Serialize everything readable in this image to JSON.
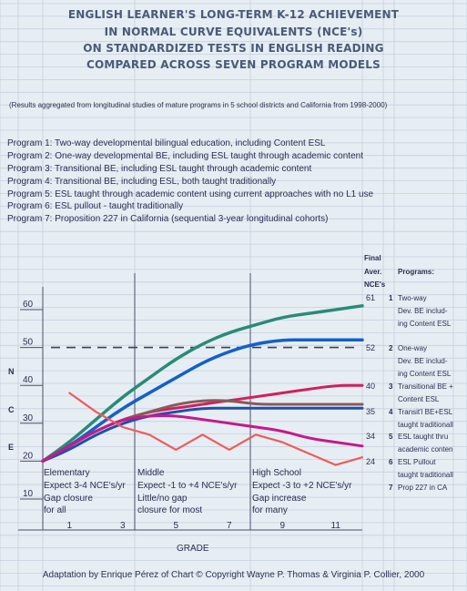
{
  "title_lines": [
    "ENGLISH LEARNER'S LONG-TERM K-12 ACHIEVEMENT",
    "IN NORMAL CURVE EQUIVALENTS (NCE's)",
    "ON STANDARDIZED TESTS IN ENGLISH READING",
    "COMPARED ACROSS SEVEN PROGRAM MODELS"
  ],
  "note": "(Results aggregated from longitudinal studies of mature programs in 5 school districts and California from 1998-2000)",
  "programs": [
    "Program 1: Two-way developmental bilingual education, including Content ESL",
    "Program 2: One-way developmental BE, including ESL taught through academic content",
    "Program 3: Transitional BE, including ESL taught through academic content",
    "Program 4: Transitional BE, including ESL, both taught traditionally",
    "Program 5: ESL taught through academic content using current approaches with no L1 use",
    "Program 6: ESL pullout - taught traditionally",
    "Program 7: Proposition 227 in California (sequential 3-year longitudinal cohorts)"
  ],
  "legend_header": {
    "final_label": "Final",
    "aver_label": "Aver.",
    "nce_label": "NCE's",
    "programs_label": "Programs:"
  },
  "legend_rows": [
    {
      "value": "61",
      "num": "1",
      "lines": [
        "Two-way",
        "Dev. BE includ-",
        "ing Content ESL"
      ]
    },
    {
      "value": "52",
      "num": "2",
      "lines": [
        "One-way",
        "Dev. BE includ-",
        "ing Content ESL"
      ]
    },
    {
      "value": "40",
      "num": "3",
      "lines": [
        "Transitional BE +",
        "Content ESL"
      ]
    },
    {
      "value": "35",
      "num": "4",
      "lines": [
        "Transit'l BE+ESL",
        "taught traditionall"
      ]
    },
    {
      "value": "34",
      "num": "5",
      "lines": [
        "ESL taught thru",
        "academic conten"
      ]
    },
    {
      "value": "24",
      "num": "6",
      "lines": [
        "ESL Pullout",
        "taught traditionall"
      ]
    },
    {
      "value": "",
      "num": "7",
      "lines": [
        "Prop 227 in CA"
      ]
    }
  ],
  "y_axis_letters": [
    "N",
    "C",
    "E"
  ],
  "stages": [
    {
      "lines": [
        "Elementary",
        "Expect 3-4 NCE's/yr",
        "Gap closure",
        "for all"
      ]
    },
    {
      "lines": [
        "Middle",
        "Expect -1 to +4 NCE's/yr",
        "Little/no gap",
        "closure for most"
      ]
    },
    {
      "lines": [
        "High School",
        "Expect -3 to +2 NCE's/yr",
        "Gap increase",
        "for many"
      ]
    }
  ],
  "credit": "Adaptation by Enrique Pérez of Chart © Copyright Wayne P. Thomas & Virginia P. Collier, 2000",
  "chart_data": {
    "type": "line",
    "xlabel": "GRADE",
    "ylabel": "",
    "x_ticks": [
      1,
      3,
      5,
      7,
      9,
      11
    ],
    "y_ticks": [
      10,
      20,
      30,
      40,
      50,
      60
    ],
    "xlim": [
      0,
      12
    ],
    "ylim": [
      10,
      66
    ],
    "reference_line": {
      "y": 50,
      "style": "dashed"
    },
    "series": [
      {
        "name": "1",
        "color": "#2a8a78",
        "x": [
          0,
          1,
          2,
          3,
          4,
          5,
          6,
          7,
          8,
          9,
          10,
          11,
          12
        ],
        "y": [
          20,
          25,
          31,
          37,
          42,
          47,
          51,
          54,
          56,
          58,
          59,
          60,
          61
        ]
      },
      {
        "name": "2",
        "color": "#1560c8",
        "x": [
          0,
          1,
          2,
          3,
          4,
          5,
          6,
          7,
          8,
          9,
          10,
          11,
          12
        ],
        "y": [
          20,
          24,
          29,
          34,
          38,
          42,
          46,
          49,
          51,
          52,
          52,
          52,
          52
        ]
      },
      {
        "name": "3",
        "color": "#d41e5c",
        "x": [
          0,
          1,
          2,
          3,
          4,
          5,
          6,
          7,
          8,
          9,
          10,
          11,
          12
        ],
        "y": [
          20,
          24,
          28,
          31,
          33,
          34,
          35,
          36,
          37,
          38,
          39,
          40,
          40
        ]
      },
      {
        "name": "4",
        "color": "#8a5a5a",
        "x": [
          0,
          1,
          2,
          3,
          4,
          5,
          6,
          7,
          8,
          9,
          10,
          11,
          12
        ],
        "y": [
          20,
          24,
          28,
          31,
          33,
          35,
          36,
          36,
          35,
          35,
          35,
          35,
          35
        ]
      },
      {
        "name": "5",
        "color": "#1e4fb0",
        "x": [
          0,
          1,
          2,
          3,
          4,
          5,
          6,
          7,
          8,
          9,
          10,
          11,
          12
        ],
        "y": [
          20,
          23,
          27,
          30,
          32,
          33,
          34,
          34,
          34,
          34,
          34,
          34,
          34
        ]
      },
      {
        "name": "6",
        "color": "#c8188a",
        "x": [
          0,
          1,
          2,
          3,
          4,
          5,
          6,
          7,
          8,
          9,
          10,
          11,
          12
        ],
        "y": [
          20,
          24,
          28,
          31,
          32,
          32,
          31,
          30,
          29,
          28,
          26,
          25,
          24
        ]
      },
      {
        "name": "7",
        "color": "#f05a5a",
        "x": [
          1,
          2,
          3,
          4,
          5,
          6,
          7,
          8,
          9,
          10,
          11,
          12
        ],
        "y": [
          38,
          33,
          29,
          27,
          23,
          27,
          23,
          27,
          25,
          22,
          19,
          21
        ]
      }
    ]
  }
}
